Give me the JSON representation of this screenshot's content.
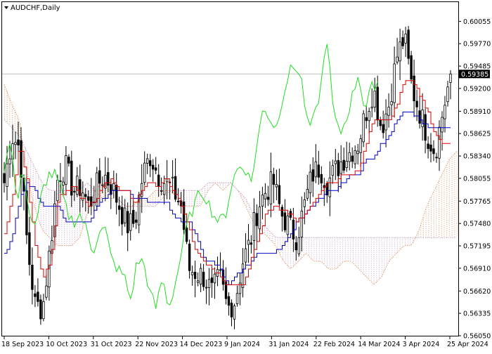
{
  "symbol_label": "AUDCHF,Daily",
  "menu_icon": "triangle-down-icon",
  "current_price": "0.59385",
  "colors": {
    "background": "#ffffff",
    "frame": "#000000",
    "grid_price_line": "#c0c0c0",
    "tenkan": "#dd0000",
    "kijun": "#0000c8",
    "chikou": "#22dd22",
    "cloud_bull": "#e0a070",
    "cloud_bear": "#c9a6c9",
    "candle_body": "#000000",
    "price_box_bg": "#000000",
    "price_box_text": "#ffffff"
  },
  "chart_data": {
    "type": "candlestick",
    "title": "AUDCHF,Daily",
    "indicator": "Ichimoku Kinko Hyo",
    "ylim": [
      0.5605,
      0.603
    ],
    "y_ticks": [
      "0.60055",
      "0.59770",
      "0.59485",
      "0.59200",
      "0.58910",
      "0.58625",
      "0.58340",
      "0.58055",
      "0.57765",
      "0.57480",
      "0.57195",
      "0.56910",
      "0.56620",
      "0.56335",
      "0.56050"
    ],
    "x_ticks": [
      "18 Sep 2023",
      "10 Oct 2023",
      "31 Oct 2023",
      "22 Nov 2023",
      "14 Dec 2023",
      "9 Jan 2024",
      "31 Jan 2024",
      "22 Feb 2024",
      "14 Mar 2024",
      "3 Apr 2024",
      "25 Apr 2024"
    ],
    "close_anchors": [
      0.58,
      0.586,
      0.5845,
      0.572,
      0.5645,
      0.564,
      0.572,
      0.581,
      0.582,
      0.579,
      0.5795,
      0.577,
      0.5795,
      0.581,
      0.5795,
      0.577,
      0.5745,
      0.575,
      0.581,
      0.5835,
      0.581,
      0.58,
      0.579,
      0.577,
      0.569,
      0.5685,
      0.568,
      0.566,
      0.568,
      0.564,
      0.565,
      0.57,
      0.5725,
      0.577,
      0.579,
      0.58,
      0.576,
      0.5745,
      0.573,
      0.577,
      0.581,
      0.582,
      0.58,
      0.5815,
      0.583,
      0.584,
      0.585,
      0.589,
      0.592,
      0.587,
      0.59,
      0.596,
      0.5985,
      0.592,
      0.589,
      0.586,
      0.584,
      0.589,
      0.5938
    ],
    "tenkan_anchors": [
      0.5735,
      0.578,
      0.585,
      0.58,
      0.572,
      0.568,
      0.57,
      0.578,
      0.579,
      0.5795,
      0.578,
      0.577,
      0.578,
      0.58,
      0.5805,
      0.579,
      0.579,
      0.577,
      0.5795,
      0.58,
      0.5795,
      0.5805,
      0.579,
      0.577,
      0.574,
      0.571,
      0.57,
      0.569,
      0.568,
      0.567,
      0.567,
      0.567,
      0.57,
      0.573,
      0.576,
      0.577,
      0.5765,
      0.576,
      0.575,
      0.576,
      0.577,
      0.579,
      0.58,
      0.58,
      0.581,
      0.581,
      0.5815,
      0.585,
      0.588,
      0.588,
      0.588,
      0.59,
      0.593,
      0.593,
      0.591,
      0.589,
      0.586,
      0.585,
      0.585
    ],
    "kijun_anchors": [
      0.571,
      0.573,
      0.578,
      0.58,
      0.579,
      0.577,
      0.577,
      0.577,
      0.575,
      0.575,
      0.575,
      0.575,
      0.577,
      0.578,
      0.579,
      0.579,
      0.579,
      0.578,
      0.578,
      0.5775,
      0.5775,
      0.5775,
      0.576,
      0.575,
      0.575,
      0.573,
      0.57,
      0.57,
      0.569,
      0.567,
      0.568,
      0.569,
      0.57,
      0.571,
      0.571,
      0.571,
      0.572,
      0.573,
      0.575,
      0.576,
      0.577,
      0.578,
      0.579,
      0.579,
      0.58,
      0.581,
      0.581,
      0.583,
      0.583,
      0.585,
      0.586,
      0.588,
      0.589,
      0.589,
      0.588,
      0.587,
      0.587,
      0.587,
      0.587
    ],
    "chikou_anchors": [
      0.582,
      0.586,
      0.577,
      0.582,
      0.576,
      0.574,
      0.579,
      0.581,
      0.581,
      0.579,
      0.576,
      0.575,
      0.576,
      0.574,
      0.571,
      0.574,
      0.574,
      0.57,
      0.569,
      0.568,
      0.565,
      0.57,
      0.57,
      0.566,
      0.564,
      0.568,
      0.564,
      0.567,
      0.571,
      0.575,
      0.577,
      0.579,
      0.578,
      0.576,
      0.575,
      0.576,
      0.58,
      0.582,
      0.582,
      0.58,
      0.585,
      0.59,
      0.588,
      0.587,
      0.591,
      0.594,
      0.595,
      0.593,
      0.587,
      0.588,
      0.592,
      0.5985,
      0.589,
      0.586,
      0.588,
      0.591,
      0.594,
      0.589,
      0.592,
      0.593
    ],
    "span_a_anchors": [
      0.5925,
      0.59,
      0.588,
      0.581,
      0.577,
      0.574,
      0.573,
      0.572,
      0.572,
      0.572,
      0.573,
      0.576,
      0.579,
      0.58,
      0.579,
      0.578,
      0.577,
      0.577,
      0.578,
      0.578,
      0.579,
      0.579,
      0.579,
      0.578,
      0.577,
      0.577,
      0.577,
      0.579,
      0.58,
      0.579,
      0.58,
      0.579,
      0.577,
      0.575,
      0.574,
      0.573,
      0.572,
      0.57,
      0.569,
      0.57,
      0.571,
      0.57,
      0.57,
      0.569,
      0.569,
      0.57,
      0.57,
      0.569,
      0.568,
      0.567,
      0.568,
      0.57,
      0.571,
      0.572,
      0.572,
      0.574,
      0.577,
      0.579,
      0.581,
      0.583,
      0.584
    ],
    "span_b_anchors": [
      0.588,
      0.587,
      0.586,
      0.584,
      0.582,
      0.58,
      0.579,
      0.579,
      0.579,
      0.579,
      0.579,
      0.58,
      0.579,
      0.578,
      0.578,
      0.578,
      0.577,
      0.577,
      0.577,
      0.577,
      0.577,
      0.578,
      0.579,
      0.579,
      0.579,
      0.579,
      0.579,
      0.58,
      0.58,
      0.58,
      0.58,
      0.579,
      0.578,
      0.576,
      0.575,
      0.574,
      0.573,
      0.573,
      0.573,
      0.573,
      0.573,
      0.573,
      0.573,
      0.573,
      0.573,
      0.573,
      0.573,
      0.573,
      0.573,
      0.573,
      0.573,
      0.573,
      0.573,
      0.573,
      0.573,
      0.573,
      0.573,
      0.573,
      0.573,
      0.573,
      0.573
    ]
  }
}
